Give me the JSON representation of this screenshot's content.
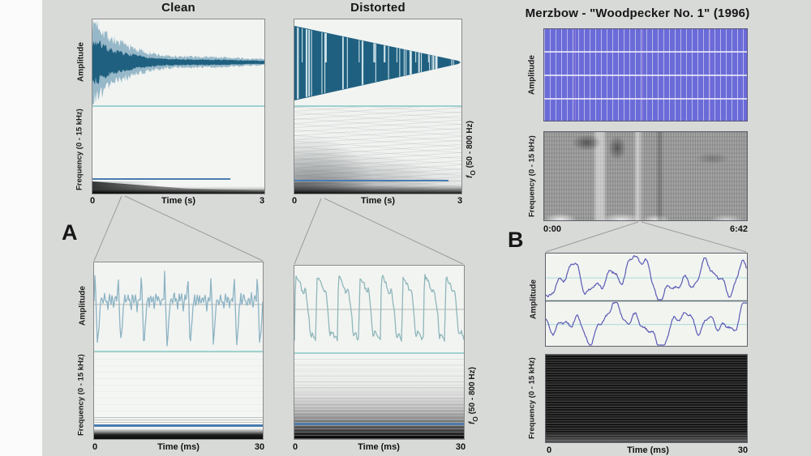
{
  "panels": {
    "a_label": "A",
    "b_label": "B",
    "clean": {
      "title": "Clean"
    },
    "distorted": {
      "title": "Distorted"
    },
    "merzbow": {
      "title": "Merzbow - \"Woodpecker No. 1\" (1996)",
      "time_start": "0:00",
      "time_end": "6:42"
    }
  },
  "axis": {
    "amplitude": "Amplitude",
    "frequency": "Frequency (0 - 15 kHz)",
    "f0_f": "f",
    "f0_sub": "O",
    "f0_rest": " (50 - 800 Hz)",
    "time_s": "Time (s)",
    "time_ms": "Time (ms)",
    "t0": "0",
    "t3": "3",
    "t30": "30"
  },
  "colors": {
    "wave_dark": "#1f6080",
    "wave_light": "#7fa9bd",
    "wave_zoom_clean": "#8cb3c3",
    "wave_zoom_dist": "#8fb7ba",
    "wave_purple": "#5b5bb5",
    "f0_line": "#4a7cb0",
    "divider_cyan": "#9fd2cf",
    "centerline_cyan": "#a9dcdc",
    "midline_gray": "#b2b6b2",
    "stripe_light": "#dfeef2",
    "merzbow_block": "#6b6bd8",
    "connector_gray": "#9b9b9b"
  },
  "chart_data": [
    {
      "panel": "A_clean_full",
      "type": "area",
      "title": "Clean",
      "xlabel": "Time (s)",
      "x_range": [
        0,
        3
      ],
      "ylabel_top": "Amplitude",
      "ylabel_bottom": "Frequency (0 - 15 kHz)",
      "features": [
        "decaying pluck waveform envelope (teal)",
        "mostly empty spectrogram",
        "constant f0 trace (blue line) ending near 2.4 s",
        "dark low-frequency energy band along bottom, tapering right"
      ]
    },
    {
      "panel": "A_distorted_full",
      "type": "area",
      "title": "Distorted",
      "xlabel": "Time (s)",
      "x_range": [
        0,
        3
      ],
      "ylabel_top": "Amplitude",
      "ylabel_bottom": "Frequency (0 - 15 kHz)",
      "ylabel_right": "fO (50 - 800 Hz)",
      "features": [
        "linearly decaying clipped envelope with vertical dropout stripes",
        "broadband gray noise cloud strongest at start and low frequencies",
        "constant f0 trace (blue line) ending near 2.7 s"
      ]
    },
    {
      "panel": "A_clean_zoom",
      "type": "line",
      "xlabel": "Time (ms)",
      "x_range": [
        0,
        30
      ],
      "features": [
        "periodic jagged waveform, ~7 cycles in 30 ms",
        "sparse faint harmonics",
        "f0 line (blue) just above dark bottom band"
      ]
    },
    {
      "panel": "A_distorted_zoom",
      "type": "line",
      "xlabel": "Time (ms)",
      "x_range": [
        0,
        30
      ],
      "features": [
        "clipped square-like periodic waveform, ~8 pulses in 30 ms",
        "dense harmonic bands darkening toward 0 Hz",
        "f0 line (blue) near bottom"
      ]
    },
    {
      "panel": "B_full",
      "type": "heatmap",
      "title": "Merzbow - \"Woodpecker No. 1\" (1996)",
      "x_time_range": [
        "0:00",
        "6:42"
      ],
      "ylabel_top": "Amplitude",
      "ylabel_bottom": "Frequency (0 - 15 kHz)",
      "features": [
        "fully saturated constant amplitude (solid blue striped block, 4 rows)",
        "dense broadband noise spectrogram with vertical streaks"
      ]
    },
    {
      "panel": "B_zoom",
      "type": "line",
      "xlabel": "Time (ms)",
      "x_range": [
        0,
        30
      ],
      "ylabel_top": "Amplitude",
      "ylabel_bottom": "Frequency (0 - 15 kHz)",
      "features": [
        "two stacked noisy aperiodic waveform rows (purple) with cyan centerlines",
        "near-black broadband spectrogram with horizontal striations"
      ]
    }
  ]
}
